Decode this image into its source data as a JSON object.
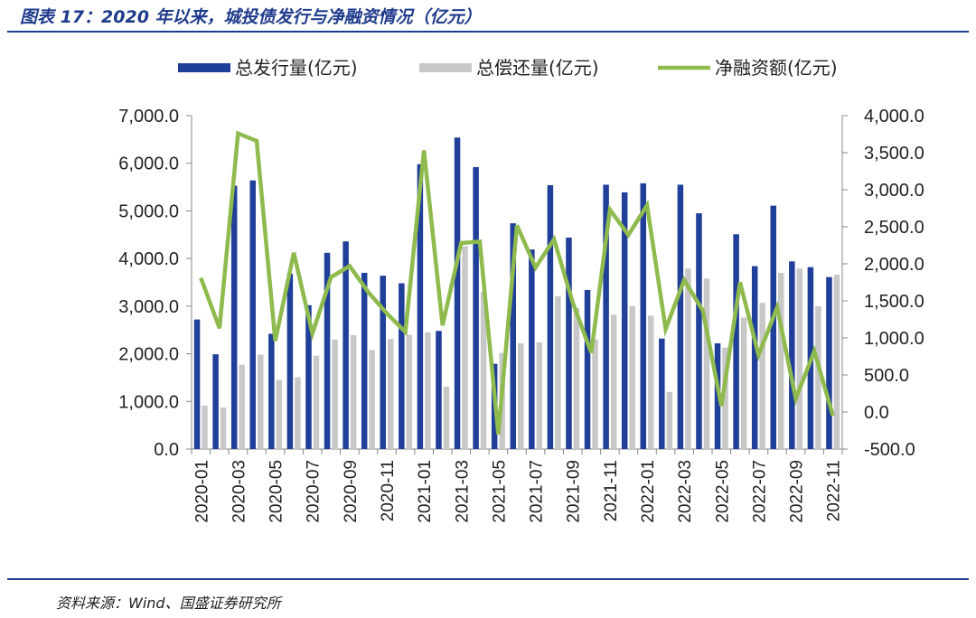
{
  "figure": {
    "title": "图表 17：2020 年以来，城投债发行与净融资情况（亿元）",
    "source": "资料来源：Wind、国盛证券研究所"
  },
  "colors": {
    "issuance": "#1f3f99",
    "repayment": "#c8c8c8",
    "net": "#8fba4e",
    "rule": "#1f3b8c"
  },
  "chart_data": {
    "type": "bar",
    "categories": [
      "2020-01",
      "2020-02",
      "2020-03",
      "2020-04",
      "2020-05",
      "2020-06",
      "2020-07",
      "2020-08",
      "2020-09",
      "2020-10",
      "2020-11",
      "2020-12",
      "2021-01",
      "2021-02",
      "2021-03",
      "2021-04",
      "2021-05",
      "2021-06",
      "2021-07",
      "2021-08",
      "2021-09",
      "2021-10",
      "2021-11",
      "2021-12",
      "2022-01",
      "2022-02",
      "2022-03",
      "2022-04",
      "2022-05",
      "2022-06",
      "2022-07",
      "2022-08",
      "2022-09",
      "2022-10",
      "2022-11"
    ],
    "x_tick_labels": [
      "2020-01",
      "2020-03",
      "2020-05",
      "2020-07",
      "2020-09",
      "2020-11",
      "2021-01",
      "2021-03",
      "2021-05",
      "2021-07",
      "2021-09",
      "2021-11",
      "2022-01",
      "2022-03",
      "2022-05",
      "2022-07",
      "2022-09",
      "2022-11"
    ],
    "series": [
      {
        "name": "总发行量(亿元)",
        "type": "bar",
        "axis": "left",
        "values": [
          2720,
          1990,
          5530,
          5640,
          2420,
          3680,
          3020,
          4120,
          4360,
          3700,
          3640,
          3480,
          5980,
          2480,
          6540,
          5920,
          1790,
          4740,
          4190,
          5540,
          4440,
          3340,
          5550,
          5390,
          5580,
          2320,
          5550,
          4950,
          2220,
          4510,
          3840,
          5110,
          3940,
          3820,
          3610
        ]
      },
      {
        "name": "总偿还量(亿元)",
        "type": "bar",
        "axis": "left",
        "values": [
          910,
          870,
          1770,
          1980,
          1450,
          1510,
          1960,
          2300,
          2390,
          2080,
          2310,
          2400,
          2450,
          1310,
          4260,
          3300,
          2020,
          2220,
          2240,
          3210,
          2960,
          2300,
          2820,
          3000,
          2800,
          1200,
          3790,
          3580,
          2130,
          2760,
          3070,
          3700,
          3790,
          3000,
          3660
        ]
      },
      {
        "name": "净融资额(亿元)",
        "type": "line",
        "axis": "right",
        "values": [
          1810,
          1130,
          3760,
          3660,
          960,
          2150,
          1060,
          1820,
          1970,
          1620,
          1330,
          1080,
          3530,
          1170,
          2280,
          2300,
          -300,
          2520,
          1950,
          2330,
          1480,
          800,
          2730,
          2390,
          2790,
          1120,
          1780,
          1370,
          80,
          1750,
          770,
          1410,
          180,
          820,
          -50
        ]
      }
    ],
    "ylim": [
      0,
      7000
    ],
    "y_ticks": [
      0,
      1000,
      2000,
      3000,
      4000,
      5000,
      6000,
      7000
    ],
    "y_tick_labels": [
      "0.0",
      "1,000.0",
      "2,000.0",
      "3,000.0",
      "4,000.0",
      "5,000.0",
      "6,000.0",
      "7,000.0"
    ],
    "y2lim": [
      -500,
      4000
    ],
    "y2_ticks": [
      -500,
      0,
      500,
      1000,
      1500,
      2000,
      2500,
      3000,
      3500,
      4000
    ],
    "y2_tick_labels": [
      "-500.0",
      "0.0",
      "500.0",
      "1,000.0",
      "1,500.0",
      "2,000.0",
      "2,500.0",
      "3,000.0",
      "3,500.0",
      "4,000.0"
    ],
    "legend_position": "top-center",
    "grid": false,
    "title": "",
    "xlabel": "",
    "ylabel": ""
  }
}
